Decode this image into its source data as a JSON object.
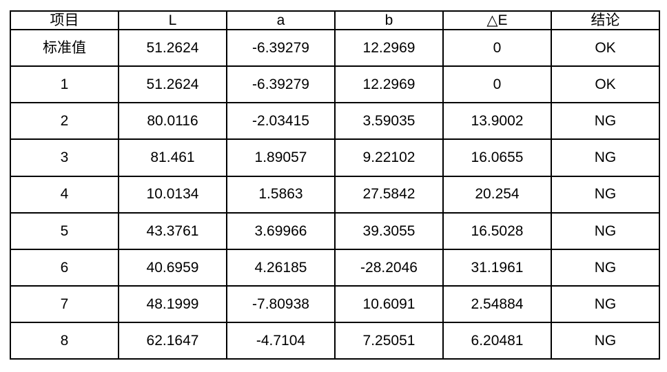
{
  "table": {
    "title_semantic": "color-measurement-results",
    "columns": [
      "项目",
      "L",
      "a",
      "b",
      "△E",
      "结论"
    ],
    "rows": [
      [
        "标准值",
        "51.2624",
        "-6.39279",
        "12.2969",
        "0",
        "OK"
      ],
      [
        "1",
        "51.2624",
        "-6.39279",
        "12.2969",
        "0",
        "OK"
      ],
      [
        "2",
        "80.0116",
        "-2.03415",
        "3.59035",
        "13.9002",
        "NG"
      ],
      [
        "3",
        "81.461",
        "1.89057",
        "9.22102",
        "16.0655",
        "NG"
      ],
      [
        "4",
        "10.0134",
        "1.5863",
        "27.5842",
        "20.254",
        "NG"
      ],
      [
        "5",
        "43.3761",
        "3.69966",
        "39.3055",
        "16.5028",
        "NG"
      ],
      [
        "6",
        "40.6959",
        "4.26185",
        "-28.2046",
        "31.1961",
        "NG"
      ],
      [
        "7",
        "48.1999",
        "-7.80938",
        "10.6091",
        "2.54884",
        "NG"
      ],
      [
        "8",
        "62.1647",
        "-4.7104",
        "7.25051",
        "6.20481",
        "NG"
      ]
    ],
    "colors": {
      "border": "#000000",
      "background": "#ffffff",
      "text": "#000000"
    }
  }
}
